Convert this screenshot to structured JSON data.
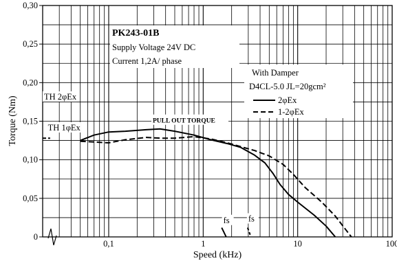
{
  "chart_data": {
    "type": "line",
    "title": "PK243-01B",
    "info_lines": [
      "Supply Voltage 24V DC",
      "Current 1,2A/ phase"
    ],
    "xlabel": "Speed (kHz)",
    "ylabel": "Torque (Nm)",
    "x_scale": "log",
    "xlim": [
      0.02,
      100
    ],
    "ylim": [
      0,
      0.3
    ],
    "grid": true,
    "x_ticks": [
      {
        "value": 0.1,
        "label": "0,1"
      },
      {
        "value": 1,
        "label": "1"
      },
      {
        "value": 10,
        "label": "10"
      },
      {
        "value": 100,
        "label": "100"
      }
    ],
    "y_ticks": [
      {
        "value": 0,
        "label": "0"
      },
      {
        "value": 0.05,
        "label": "0,05"
      },
      {
        "value": 0.1,
        "label": "0,10"
      },
      {
        "value": 0.15,
        "label": "0,15"
      },
      {
        "value": 0.2,
        "label": "0,20"
      },
      {
        "value": 0.25,
        "label": "0,25"
      },
      {
        "value": 0.3,
        "label": "0,30"
      }
    ],
    "legend": {
      "title_lines": [
        "With Damper",
        "D4CL-5.0  JL=20gcm²"
      ],
      "placement": "right",
      "entries": [
        {
          "label": "2φEx",
          "style": "solid"
        },
        {
          "label": "1-2φEx",
          "style": "dashed"
        }
      ]
    },
    "series": [
      {
        "name": "2φEx",
        "style": "solid",
        "x": [
          0.05,
          0.07,
          0.1,
          0.15,
          0.25,
          0.35,
          0.5,
          0.8,
          1.2,
          1.8,
          2.5,
          3.5,
          4.5,
          5.5,
          6.5,
          8,
          10,
          15,
          20,
          25
        ],
        "y": [
          0.125,
          0.132,
          0.136,
          0.137,
          0.139,
          0.14,
          0.137,
          0.132,
          0.126,
          0.121,
          0.116,
          0.106,
          0.096,
          0.082,
          0.068,
          0.055,
          0.045,
          0.028,
          0.014,
          0.0
        ]
      },
      {
        "name": "1-2φEx",
        "style": "dashed",
        "x": [
          0.05,
          0.07,
          0.1,
          0.15,
          0.25,
          0.35,
          0.5,
          0.8,
          1.2,
          1.8,
          2.5,
          3.5,
          5,
          7,
          9,
          12,
          18,
          25,
          32,
          37
        ],
        "y": [
          0.124,
          0.123,
          0.122,
          0.126,
          0.129,
          0.128,
          0.128,
          0.13,
          0.127,
          0.122,
          0.117,
          0.112,
          0.105,
          0.094,
          0.081,
          0.064,
          0.045,
          0.027,
          0.01,
          0.0
        ]
      }
    ],
    "annotations": [
      {
        "text": "PULL OUT TORQUE",
        "x": 0.45,
        "y": 0.148
      },
      {
        "text": "TH 2φEx",
        "x": 0.02,
        "y": 0.178
      },
      {
        "text": "TH 1φEx",
        "x": 0.022,
        "y": 0.138
      },
      {
        "text": "fs",
        "x": 1.58,
        "y": 0.018
      },
      {
        "text": "fs",
        "x": 2.9,
        "y": 0.02
      }
    ],
    "holding_torque_marks": [
      {
        "label": "TH 2φEx",
        "y": 0.178,
        "x_from": 0.02,
        "x_to": 0.024
      },
      {
        "label": "TH 1φEx",
        "y": 0.128,
        "x_from": 0.02,
        "x_to": 0.024
      }
    ],
    "fs_marks": [
      {
        "x_top": 1.57,
        "x_bottom": 1.75,
        "y_top": 0.012
      },
      {
        "x_top": 2.95,
        "x_bottom": 3.2,
        "y_top": 0.012
      }
    ]
  }
}
